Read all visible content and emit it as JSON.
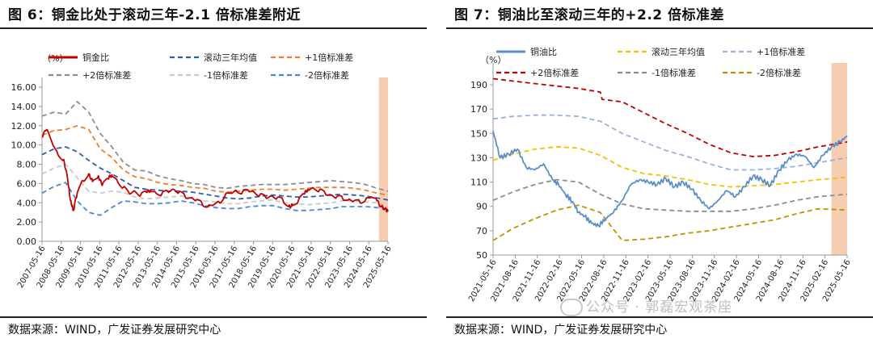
{
  "left": {
    "title": "图 6：铜金比处于滚动三年-2.1 倍标准差附近",
    "source": "数据来源：WIND，广发证券发展研究中心"
  },
  "right": {
    "title": "图 7：铜油比至滚动三年的+2.2 倍标准差",
    "source": "数据来源：WIND，广发证券发展研究中心"
  },
  "watermark": "公众号 · 郭磊宏观茶座",
  "colors": {
    "series_main_left": "#c00000",
    "series_main_right": "#5b8ec8",
    "mean_left": "#2e5ca8",
    "mean_right": "#f5c000",
    "plus1_left": "#ed7d31",
    "plus1_right": "#9ab0dc",
    "plus2": "#8c8c8c",
    "plus2_right": "#c00000",
    "minus1": "#c8c8c8",
    "minus1_right": "#8c8c8c",
    "minus2_left": "#4a86d8",
    "minus2_right": "#c09000",
    "highlight": "#f5c8a8"
  },
  "chart_data": [
    {
      "type": "line",
      "title": "图 6：铜金比处于滚动三年-2.1 倍标准差附近",
      "unit_label": "（%）",
      "ylim": [
        0,
        16
      ],
      "y_ticks": [
        "0.00",
        "2.00",
        "4.00",
        "6.00",
        "8.00",
        "10.00",
        "12.00",
        "14.00",
        "16.00"
      ],
      "x_ticks": [
        "2007-05-16",
        "2008-05-16",
        "2009-05-16",
        "2010-05-16",
        "2011-05-16",
        "2012-05-16",
        "2013-05-16",
        "2014-05-16",
        "2015-05-16",
        "2016-05-16",
        "2017-05-16",
        "2018-05-16",
        "2019-05-16",
        "2020-05-16",
        "2021-05-16",
        "2022-05-16",
        "2023-05-16",
        "2024-05-16",
        "2025-05-16"
      ],
      "x_start_year": 2007.37,
      "x_end_year": 2025.37,
      "highlight_range": [
        2024.9,
        2025.37
      ],
      "series": [
        {
          "name": "铜金比",
          "style": "solid",
          "color_key": "series_main_left",
          "x": [
            2007.37,
            2007.6,
            2007.9,
            2008.2,
            2008.5,
            2008.7,
            2008.85,
            2009.0,
            2009.2,
            2009.5,
            2009.8,
            2010.0,
            2010.3,
            2010.5,
            2010.8,
            2011.0,
            2011.3,
            2011.6,
            2011.9,
            2012.2,
            2012.5,
            2012.8,
            2013.0,
            2013.3,
            2013.6,
            2013.9,
            2014.2,
            2014.5,
            2014.8,
            2015.1,
            2015.4,
            2015.7,
            2016.0,
            2016.3,
            2016.6,
            2016.9,
            2017.2,
            2017.5,
            2017.8,
            2018.1,
            2018.4,
            2018.7,
            2019.0,
            2019.3,
            2019.6,
            2019.9,
            2020.2,
            2020.4,
            2020.7,
            2021.0,
            2021.2,
            2021.5,
            2021.8,
            2022.1,
            2022.4,
            2022.7,
            2023.0,
            2023.3,
            2023.6,
            2023.9,
            2024.2,
            2024.5,
            2024.8,
            2025.0,
            2025.2,
            2025.37
          ],
          "values": [
            10.8,
            11.6,
            10.2,
            9.0,
            8.5,
            6.5,
            4.2,
            3.2,
            5.0,
            6.3,
            7.0,
            6.2,
            6.8,
            5.8,
            6.5,
            6.9,
            6.2,
            5.6,
            5.0,
            5.2,
            4.8,
            5.1,
            5.3,
            5.0,
            4.9,
            5.2,
            5.4,
            5.1,
            4.7,
            4.5,
            4.3,
            3.9,
            3.6,
            3.8,
            4.0,
            4.8,
            5.0,
            5.2,
            5.1,
            5.3,
            5.1,
            4.8,
            4.6,
            4.7,
            4.5,
            4.3,
            3.6,
            3.7,
            4.2,
            4.9,
            5.4,
            5.5,
            5.3,
            5.0,
            4.8,
            4.6,
            4.5,
            4.3,
            4.2,
            4.1,
            4.3,
            4.6,
            4.2,
            3.6,
            3.4,
            3.1
          ]
        },
        {
          "name": "滚动三年均值",
          "style": "dash",
          "color_key": "mean_left",
          "x": [
            2007.37,
            2008.0,
            2008.6,
            2009.2,
            2009.8,
            2010.4,
            2011.0,
            2011.6,
            2012.2,
            2012.8,
            2013.4,
            2014.0,
            2014.6,
            2015.2,
            2015.8,
            2016.4,
            2017.0,
            2017.6,
            2018.2,
            2018.8,
            2019.4,
            2020.0,
            2020.6,
            2021.2,
            2021.8,
            2022.4,
            2023.0,
            2023.6,
            2024.2,
            2024.8,
            2025.37
          ],
          "values": [
            9.0,
            9.6,
            9.8,
            9.3,
            8.4,
            7.6,
            7.0,
            6.3,
            5.6,
            5.4,
            5.3,
            5.2,
            5.2,
            5.1,
            4.9,
            4.7,
            4.5,
            4.4,
            4.5,
            4.7,
            4.8,
            4.7,
            4.6,
            4.6,
            4.7,
            4.8,
            4.9,
            4.8,
            4.7,
            4.5,
            4.3
          ]
        },
        {
          "name": "+1倍标准差",
          "style": "dash",
          "color_key": "plus1_left",
          "x": [
            2007.37,
            2008.0,
            2008.6,
            2009.2,
            2009.8,
            2010.4,
            2011.0,
            2011.6,
            2012.2,
            2012.8,
            2013.4,
            2014.0,
            2014.6,
            2015.2,
            2015.8,
            2016.4,
            2017.0,
            2017.6,
            2018.2,
            2018.8,
            2019.4,
            2020.0,
            2020.6,
            2021.2,
            2021.8,
            2022.4,
            2023.0,
            2023.6,
            2024.2,
            2024.8,
            2025.37
          ],
          "values": [
            11.0,
            11.5,
            11.6,
            12.0,
            11.6,
            9.6,
            8.7,
            7.4,
            6.7,
            6.5,
            6.1,
            5.9,
            5.8,
            5.6,
            5.5,
            5.2,
            5.1,
            5.2,
            5.3,
            5.4,
            5.4,
            5.3,
            5.4,
            5.5,
            5.6,
            5.6,
            5.6,
            5.5,
            5.3,
            5.0,
            4.8
          ]
        },
        {
          "name": "+2倍标准差",
          "style": "dash",
          "color_key": "plus2",
          "x": [
            2007.37,
            2008.0,
            2008.6,
            2009.2,
            2009.8,
            2010.4,
            2011.0,
            2011.6,
            2012.2,
            2012.8,
            2013.4,
            2014.0,
            2014.6,
            2015.2,
            2015.8,
            2016.4,
            2017.0,
            2017.6,
            2018.2,
            2018.8,
            2019.4,
            2020.0,
            2020.6,
            2021.2,
            2021.8,
            2022.4,
            2023.0,
            2023.6,
            2024.2,
            2024.8,
            2025.37
          ],
          "values": [
            13.0,
            13.4,
            13.2,
            14.5,
            13.4,
            11.2,
            9.8,
            8.2,
            7.4,
            7.3,
            6.8,
            6.5,
            6.3,
            6.0,
            5.9,
            5.6,
            5.5,
            5.7,
            5.8,
            5.9,
            5.9,
            5.9,
            6.0,
            6.1,
            6.2,
            6.3,
            6.2,
            6.1,
            5.9,
            5.5,
            5.2
          ]
        },
        {
          "name": "-1倍标准差",
          "style": "dash",
          "color_key": "minus1",
          "x": [
            2007.37,
            2008.0,
            2008.6,
            2009.2,
            2009.8,
            2010.4,
            2011.0,
            2011.6,
            2012.2,
            2012.8,
            2013.4,
            2014.0,
            2014.6,
            2015.2,
            2015.8,
            2016.4,
            2017.0,
            2017.6,
            2018.2,
            2018.8,
            2019.4,
            2020.0,
            2020.6,
            2021.2,
            2021.8,
            2022.4,
            2023.0,
            2023.6,
            2024.2,
            2024.8,
            2025.37
          ],
          "values": [
            7.0,
            7.6,
            8.0,
            6.6,
            5.2,
            5.0,
            5.2,
            5.1,
            4.6,
            4.4,
            4.5,
            4.6,
            4.7,
            4.5,
            4.2,
            4.1,
            3.9,
            3.9,
            4.1,
            4.2,
            4.3,
            4.0,
            3.9,
            3.8,
            3.9,
            4.0,
            4.2,
            4.2,
            4.1,
            4.0,
            3.8
          ]
        },
        {
          "name": "-2倍标准差",
          "style": "dash",
          "color_key": "minus2_left",
          "x": [
            2007.37,
            2008.0,
            2008.6,
            2009.2,
            2009.8,
            2010.4,
            2011.0,
            2011.6,
            2012.2,
            2012.8,
            2013.4,
            2014.0,
            2014.6,
            2015.2,
            2015.8,
            2016.4,
            2017.0,
            2017.6,
            2018.2,
            2018.8,
            2019.4,
            2020.0,
            2020.6,
            2021.2,
            2021.8,
            2022.4,
            2023.0,
            2023.6,
            2024.2,
            2024.8,
            2025.37
          ],
          "values": [
            5.0,
            5.7,
            6.1,
            4.2,
            3.0,
            2.7,
            3.5,
            4.2,
            4.1,
            3.9,
            3.9,
            4.0,
            4.2,
            4.0,
            3.7,
            3.5,
            3.4,
            3.4,
            3.6,
            3.7,
            3.7,
            3.4,
            3.2,
            3.2,
            3.3,
            3.4,
            3.6,
            3.6,
            3.6,
            3.5,
            3.3
          ]
        }
      ]
    },
    {
      "type": "line",
      "title": "图 7：铜油比至滚动三年的+2.2 倍标准差",
      "unit_label": "（%）",
      "ylim": [
        50,
        200
      ],
      "y_ticks": [
        "50",
        "70",
        "90",
        "110",
        "130",
        "150",
        "170",
        "190"
      ],
      "x_ticks": [
        "2021-05-16",
        "2021-08-16",
        "2021-11-16",
        "2022-02-16",
        "2022-05-16",
        "2022-08-16",
        "2022-11-16",
        "2023-02-16",
        "2023-05-16",
        "2023-08-16",
        "2023-11-16",
        "2024-02-16",
        "2024-05-16",
        "2024-08-16",
        "2024-11-16",
        "2025-02-16",
        "2025-05-16"
      ],
      "x_start_year": 2021.37,
      "x_end_year": 2025.43,
      "highlight_range": [
        2025.25,
        2025.43
      ],
      "series": [
        {
          "name": "铜油比",
          "style": "solid",
          "color_key": "series_main_right",
          "x": [
            2021.37,
            2021.45,
            2021.55,
            2021.65,
            2021.75,
            2021.85,
            2021.95,
            2022.05,
            2022.12,
            2022.2,
            2022.28,
            2022.35,
            2022.42,
            2022.5,
            2022.58,
            2022.66,
            2022.75,
            2022.85,
            2022.95,
            2023.05,
            2023.15,
            2023.25,
            2023.35,
            2023.45,
            2023.55,
            2023.65,
            2023.75,
            2023.85,
            2023.95,
            2024.05,
            2024.15,
            2024.25,
            2024.35,
            2024.45,
            2024.55,
            2024.65,
            2024.75,
            2024.85,
            2024.95,
            2025.05,
            2025.15,
            2025.25,
            2025.35,
            2025.43
          ],
          "values": [
            152,
            130,
            133,
            137,
            122,
            120,
            125,
            112,
            108,
            100,
            94,
            85,
            82,
            76,
            74,
            80,
            85,
            95,
            108,
            112,
            110,
            108,
            113,
            106,
            110,
            104,
            95,
            88,
            95,
            103,
            98,
            106,
            115,
            112,
            107,
            120,
            128,
            133,
            131,
            122,
            132,
            139,
            143,
            148
          ]
        },
        {
          "name": "滚动三年均值",
          "style": "dash",
          "color_key": "mean_right",
          "x": [
            2021.37,
            2021.6,
            2021.85,
            2022.1,
            2022.35,
            2022.6,
            2022.85,
            2023.1,
            2023.35,
            2023.6,
            2023.85,
            2024.1,
            2024.35,
            2024.6,
            2024.85,
            2025.1,
            2025.43
          ],
          "values": [
            128,
            133,
            137,
            139,
            138,
            132,
            122,
            117,
            115,
            112,
            108,
            106,
            107,
            108,
            110,
            112,
            114
          ]
        },
        {
          "name": "+1倍标准差",
          "style": "dash",
          "color_key": "plus1_right",
          "x": [
            2021.37,
            2021.6,
            2021.85,
            2022.1,
            2022.35,
            2022.6,
            2022.85,
            2023.1,
            2023.35,
            2023.6,
            2023.85,
            2024.1,
            2024.35,
            2024.6,
            2024.85,
            2025.1,
            2025.43
          ],
          "values": [
            162,
            164,
            165,
            165,
            164,
            160,
            150,
            143,
            136,
            131,
            125,
            120,
            120,
            121,
            123,
            126,
            130
          ]
        },
        {
          "name": "+2倍标准差",
          "style": "dash",
          "color_key": "plus2_right",
          "x": [
            2021.37,
            2021.6,
            2021.85,
            2022.1,
            2022.35,
            2022.6,
            2022.62,
            2022.85,
            2023.1,
            2023.35,
            2023.6,
            2023.85,
            2024.1,
            2024.35,
            2024.6,
            2024.85,
            2025.1,
            2025.43
          ],
          "values": [
            195,
            193,
            191,
            189,
            187,
            184,
            178,
            176,
            167,
            158,
            150,
            141,
            134,
            131,
            132,
            135,
            139,
            143
          ]
        },
        {
          "name": "-1倍标准差",
          "style": "dash",
          "color_key": "minus1_right",
          "x": [
            2021.37,
            2021.6,
            2021.85,
            2022.1,
            2022.35,
            2022.6,
            2022.85,
            2023.1,
            2023.35,
            2023.6,
            2023.85,
            2024.1,
            2024.35,
            2024.6,
            2024.85,
            2025.1,
            2025.43
          ],
          "values": [
            95,
            102,
            108,
            112,
            110,
            100,
            92,
            88,
            87,
            86,
            86,
            86,
            88,
            91,
            95,
            98,
            100
          ]
        },
        {
          "name": "-2倍标准差",
          "style": "dash",
          "color_key": "minus2_right",
          "x": [
            2021.37,
            2021.6,
            2021.85,
            2022.1,
            2022.35,
            2022.6,
            2022.85,
            2023.1,
            2023.35,
            2023.6,
            2023.85,
            2024.1,
            2024.35,
            2024.6,
            2024.85,
            2025.1,
            2025.43
          ],
          "values": [
            62,
            72,
            80,
            87,
            91,
            85,
            62,
            63,
            65,
            68,
            70,
            73,
            76,
            79,
            84,
            88,
            87
          ]
        }
      ]
    }
  ]
}
